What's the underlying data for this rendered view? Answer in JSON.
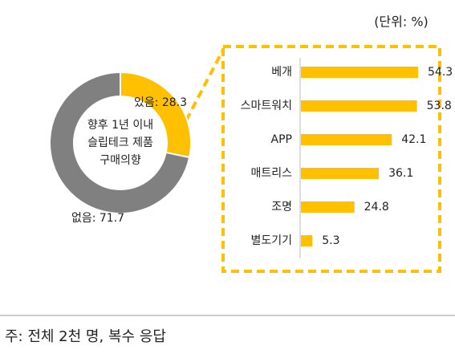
{
  "chart_data": [
    {
      "type": "pie",
      "categories": [
        "있음",
        "없음"
      ],
      "values": [
        28.3,
        71.7
      ],
      "value_labels": [
        "있음: 28.3",
        "없음: 71.7"
      ],
      "colors": [
        "#FFC000",
        "#808080"
      ],
      "center_text": [
        "향후 1년 이내",
        "슬립테크 제품",
        "구매의향"
      ]
    },
    {
      "type": "hbar",
      "subtitle": "(단위: %)",
      "categories": [
        "베개",
        "스마트워치",
        "APP",
        "매트리스",
        "조명",
        "별도기기"
      ],
      "values": [
        54.3,
        53.8,
        42.1,
        36.1,
        24.8,
        5.3
      ],
      "color": "#FFC000"
    }
  ],
  "footnote": "주: 전체 2천 명, 복수 응답"
}
